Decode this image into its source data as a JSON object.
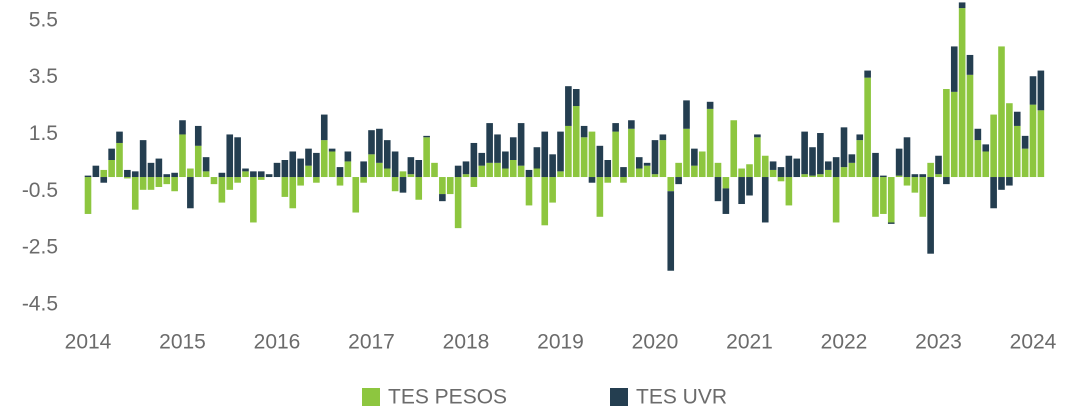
{
  "chart_data": {
    "type": "stacked_bar",
    "categories": [
      "2014",
      null,
      null,
      null,
      null,
      null,
      null,
      null,
      null,
      null,
      null,
      null,
      "2015",
      null,
      null,
      null,
      null,
      null,
      null,
      null,
      null,
      null,
      null,
      null,
      "2016",
      null,
      null,
      null,
      null,
      null,
      null,
      null,
      null,
      null,
      null,
      null,
      "2017",
      null,
      null,
      null,
      null,
      null,
      null,
      null,
      null,
      null,
      null,
      null,
      "2018",
      null,
      null,
      null,
      null,
      null,
      null,
      null,
      null,
      null,
      null,
      null,
      "2019",
      null,
      null,
      null,
      null,
      null,
      null,
      null,
      null,
      null,
      null,
      null,
      "2020",
      null,
      null,
      null,
      null,
      null,
      null,
      null,
      null,
      null,
      null,
      null,
      "2021",
      null,
      null,
      null,
      null,
      null,
      null,
      null,
      null,
      null,
      null,
      null,
      "2022",
      null,
      null,
      null,
      null,
      null,
      null,
      null,
      null,
      null,
      null,
      null,
      "2023",
      null,
      null,
      null,
      null,
      null,
      null,
      null,
      null,
      null,
      null,
      null,
      "2024",
      null
    ],
    "series": [
      {
        "name": "TES PESOS",
        "color": "#8dc63f",
        "values": [
          -1.3,
          0,
          0.25,
          0.6,
          1.2,
          -0.05,
          -1.15,
          -0.45,
          -0.45,
          -0.35,
          -0.25,
          -0.5,
          1.5,
          0.3,
          1.1,
          0.2,
          -0.25,
          -0.9,
          -0.45,
          -0.2,
          0.2,
          -1.6,
          -0.1,
          0,
          0,
          -0.7,
          -1.1,
          -0.3,
          0.4,
          -0.2,
          1.3,
          0.9,
          -0.3,
          0.55,
          -1.25,
          -0.2,
          0.8,
          0.5,
          0.3,
          -0.5,
          0.2,
          0.1,
          -0.8,
          1.4,
          0.5,
          -0.6,
          -0.6,
          -1.8,
          0.1,
          -0.35,
          0.4,
          0.5,
          0.5,
          0.3,
          0.6,
          0.4,
          -1.0,
          0.3,
          -1.7,
          -0.9,
          0.2,
          1.8,
          2.5,
          1.4,
          1.6,
          -1.4,
          -0.2,
          1.6,
          -0.2,
          1.7,
          0.3,
          0.4,
          0.1,
          1.3,
          -0.5,
          0.5,
          1.7,
          0.4,
          0.9,
          2.4,
          0.5,
          -0.4,
          2.0,
          0.3,
          0.45,
          1.4,
          0.75,
          0.25,
          -0.15,
          -1.0,
          0,
          0.1,
          0.05,
          0.1,
          0.25,
          -1.6,
          0.35,
          0.5,
          1.3,
          3.5,
          -1.4,
          -1.3,
          -1.6,
          0.05,
          -0.3,
          -0.55,
          -1.4,
          0.5,
          0.1,
          3.1,
          3.0,
          5.95,
          3.6,
          1.3,
          0.9,
          2.2,
          4.6,
          2.6,
          1.8,
          1.0,
          2.55,
          2.35
        ]
      },
      {
        "name": "TES UVR",
        "color": "#243e50",
        "values": [
          0.05,
          0.4,
          -0.2,
          0.4,
          0.4,
          0.25,
          0.2,
          1.3,
          0.5,
          0.65,
          0.1,
          0.15,
          0.5,
          -1.1,
          0.7,
          0.5,
          0,
          0.15,
          1.5,
          1.4,
          0.1,
          0.2,
          0.2,
          0.1,
          0.5,
          0.6,
          0.9,
          0.65,
          0.6,
          0.85,
          0.9,
          0.1,
          0.35,
          0.35,
          0,
          0.55,
          0.85,
          1.2,
          1.0,
          0.9,
          -0.55,
          0.6,
          0.6,
          0.05,
          0,
          -0.25,
          0,
          0.4,
          0.45,
          1.2,
          0.45,
          1.4,
          1.0,
          0.6,
          0.8,
          1.5,
          0.25,
          0.75,
          1.6,
          0.8,
          1.4,
          1.4,
          0.6,
          0.4,
          -0.2,
          1.1,
          0.6,
          0.3,
          0.35,
          0.3,
          0.4,
          0.1,
          1.2,
          0.2,
          -2.8,
          -0.25,
          1.0,
          0.6,
          0,
          0.25,
          -0.85,
          -0.9,
          0,
          -0.95,
          -0.65,
          0.1,
          -1.6,
          0.3,
          0.35,
          0.75,
          0.65,
          1.5,
          1.0,
          1.45,
          0.3,
          0.7,
          1.4,
          0.3,
          0.2,
          0.25,
          0.85,
          0.05,
          -0.05,
          0.95,
          1.4,
          0.1,
          0.1,
          -2.7,
          0.65,
          -0.25,
          1.6,
          0.2,
          0.7,
          0.4,
          0.25,
          -1.1,
          -0.45,
          -0.3,
          0.5,
          0.45,
          1.0,
          1.4
        ]
      }
    ],
    "ylim": [
      -5,
      6.2
    ],
    "yticks": [
      5.5,
      3.5,
      1.5,
      -0.5,
      -2.5,
      -4.5
    ],
    "grid": false,
    "legend": "bottom"
  }
}
